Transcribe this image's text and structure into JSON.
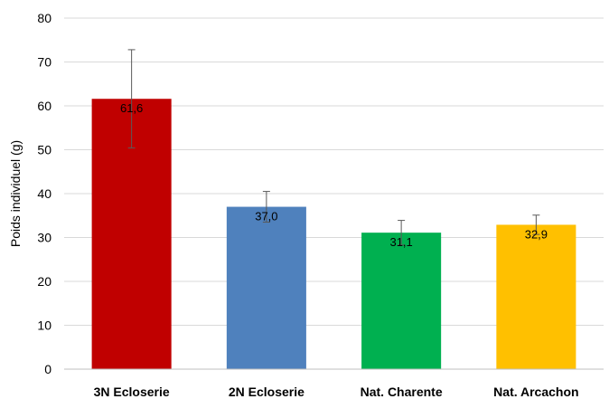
{
  "chart_data": {
    "type": "bar",
    "title": "",
    "xlabel": "",
    "ylabel": "Poids individuel (g)",
    "ylim": [
      0,
      80
    ],
    "yticks": [
      0,
      10,
      20,
      30,
      40,
      50,
      60,
      70,
      80
    ],
    "grid": true,
    "categories": [
      "3N Ecloserie",
      "2N Ecloserie",
      "Nat. Charente",
      "Nat. Arcachon"
    ],
    "values": [
      61.6,
      37.0,
      31.1,
      32.9
    ],
    "data_labels": [
      "61,6",
      "37,0",
      "31,1",
      "32,9"
    ],
    "errors": [
      11.2,
      3.5,
      2.8,
      2.2
    ],
    "colors": [
      "#c00000",
      "#4f81bd",
      "#00b050",
      "#ffc000"
    ]
  }
}
